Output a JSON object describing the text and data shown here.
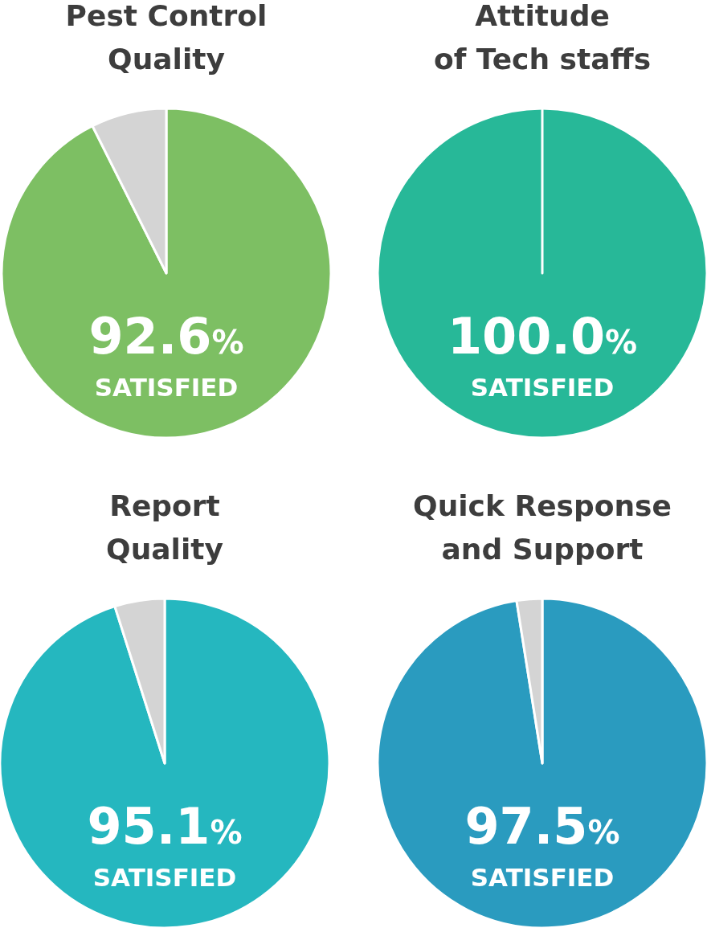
{
  "chart_data": [
    {
      "type": "pie",
      "title": "Pest Control\nQuality",
      "categories": [
        "SATISFIED",
        null
      ],
      "values": [
        92.6,
        7.4
      ],
      "colors": [
        "#7dbf63",
        "#d4d4d4"
      ],
      "value_labels": [
        "92.6%",
        null
      ]
    },
    {
      "type": "pie",
      "title": "Attitude\nof Tech staffs",
      "categories": [
        "SATISFIED",
        null
      ],
      "values": [
        100.0,
        0
      ],
      "colors": [
        "#27b898",
        "#d4d4d4"
      ],
      "value_labels": [
        "100.0%",
        null
      ]
    },
    {
      "type": "pie",
      "title": "Report\nQuality",
      "categories": [
        "SATISFIED",
        null
      ],
      "values": [
        95.1,
        4.9
      ],
      "colors": [
        "#25b7bf",
        "#d4d4d4"
      ],
      "value_labels": [
        "95.1%",
        null
      ]
    },
    {
      "type": "pie",
      "title": "Quick Response\nand Support",
      "categories": [
        "SATISFIED",
        null
      ],
      "values": [
        97.5,
        2.5
      ],
      "colors": [
        "#2a9bbf",
        "#d4d4d4"
      ],
      "value_labels": [
        "97.5%",
        null
      ]
    }
  ]
}
